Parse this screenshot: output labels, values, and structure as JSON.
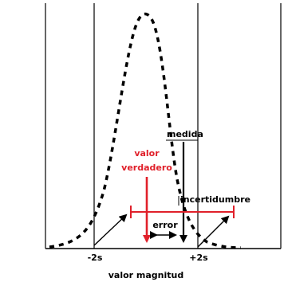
{
  "diagram": {
    "labels": {
      "measured": "medida",
      "true_value_line1": "valor",
      "true_value_line2": "verdadero",
      "uncertainty": "incertidumbre",
      "error": "error",
      "minus_2s": "-2s",
      "plus_2s": "+2s",
      "x_axis": "valor magnitud"
    },
    "colors": {
      "curve": "#000000",
      "true_value": "#e0202a",
      "uncertainty_bar": "#e0202a",
      "text": "#000000"
    }
  }
}
